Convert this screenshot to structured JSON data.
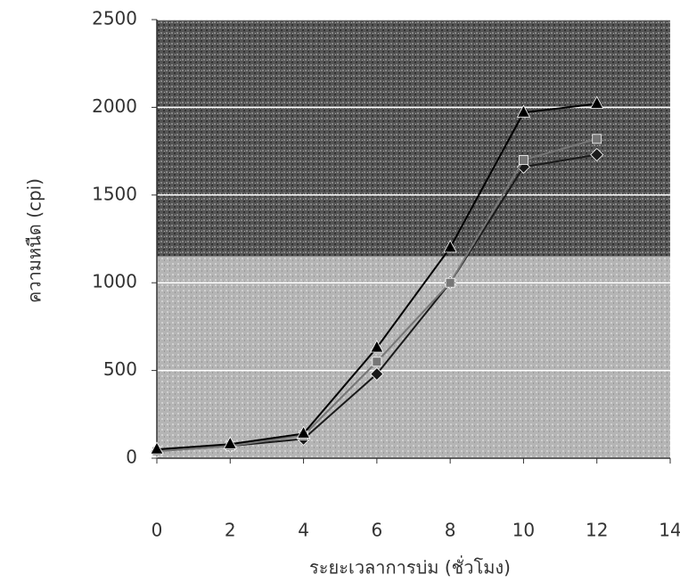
{
  "chart_data": {
    "type": "line",
    "x_label": "ระยะเวลาการบ่ม (ชั่วโมง)",
    "y_label": "ความหนืด (cpi)",
    "xlim": [
      0,
      14
    ],
    "xticks": [
      0,
      2,
      4,
      6,
      8,
      10,
      12,
      14
    ],
    "ylim": [
      0,
      2500
    ],
    "yticks": [
      0,
      500,
      1000,
      1500,
      2000,
      2500
    ],
    "grid": true,
    "x": [
      0,
      2,
      4,
      6,
      8,
      10,
      12
    ],
    "series": [
      {
        "color": "#1a1a1a",
        "marker": "diamond",
        "values": [
          40,
          70,
          110,
          480,
          1000,
          1660,
          1730
        ]
      },
      {
        "color": "#777777",
        "marker": "square",
        "values": [
          40,
          70,
          130,
          550,
          1000,
          1700,
          1820
        ]
      },
      {
        "color": "#000000",
        "marker": "triangle",
        "values": [
          50,
          80,
          140,
          630,
          1200,
          1970,
          2020
        ]
      }
    ]
  }
}
